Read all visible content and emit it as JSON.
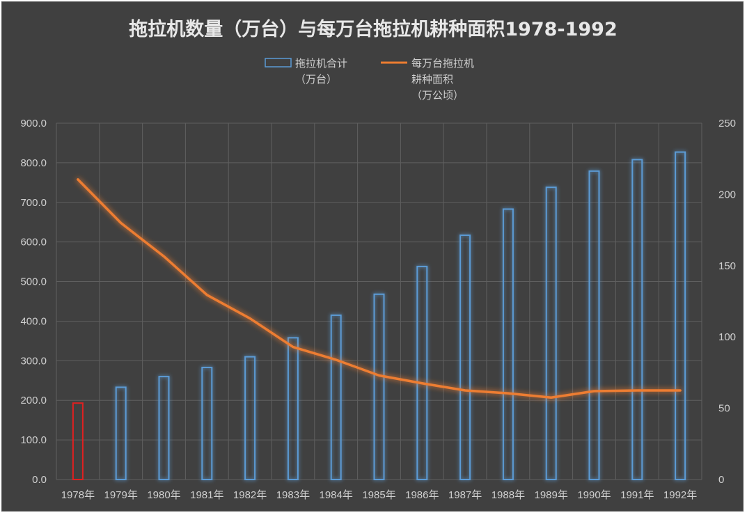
{
  "chart_data": {
    "type": "bar",
    "title": "拖拉机数量（万台）与每万台拖拉机耕种面积1978-1992",
    "categories": [
      "1978年",
      "1979年",
      "1980年",
      "1981年",
      "1982年",
      "1983年",
      "1984年",
      "1985年",
      "1986年",
      "1987年",
      "1988年",
      "1989年",
      "1990年",
      "1991年",
      "1992年"
    ],
    "y_left": {
      "ylim": [
        0,
        900
      ],
      "ticks": [
        "0.0",
        "100.0",
        "200.0",
        "300.0",
        "400.0",
        "500.0",
        "600.0",
        "700.0",
        "800.0",
        "900.0"
      ]
    },
    "y_right": {
      "ylim": [
        0,
        250
      ],
      "ticks": [
        "0",
        "50",
        "100",
        "150",
        "200",
        "250"
      ]
    },
    "grid": true,
    "legend_position": "top-center",
    "series": [
      {
        "name_lines": [
          "拖拉机合计",
          "（万台）"
        ],
        "type": "bar",
        "axis": "left",
        "color": "#5b9bd5",
        "highlight_first_color": "#e02020",
        "values": [
          193,
          233,
          260,
          283,
          310,
          358,
          415,
          468,
          538,
          617,
          683,
          738,
          779,
          808,
          827
        ]
      },
      {
        "name_lines": [
          "每万台拖拉机",
          "耕种面积",
          "（万公顷）"
        ],
        "type": "line",
        "axis": "right",
        "color": "#ed7d31",
        "values": [
          210.5,
          180,
          156.5,
          129.5,
          113,
          93,
          84,
          73,
          67.5,
          62.5,
          60.5,
          57.5,
          62,
          62.5,
          62.5
        ]
      }
    ]
  }
}
